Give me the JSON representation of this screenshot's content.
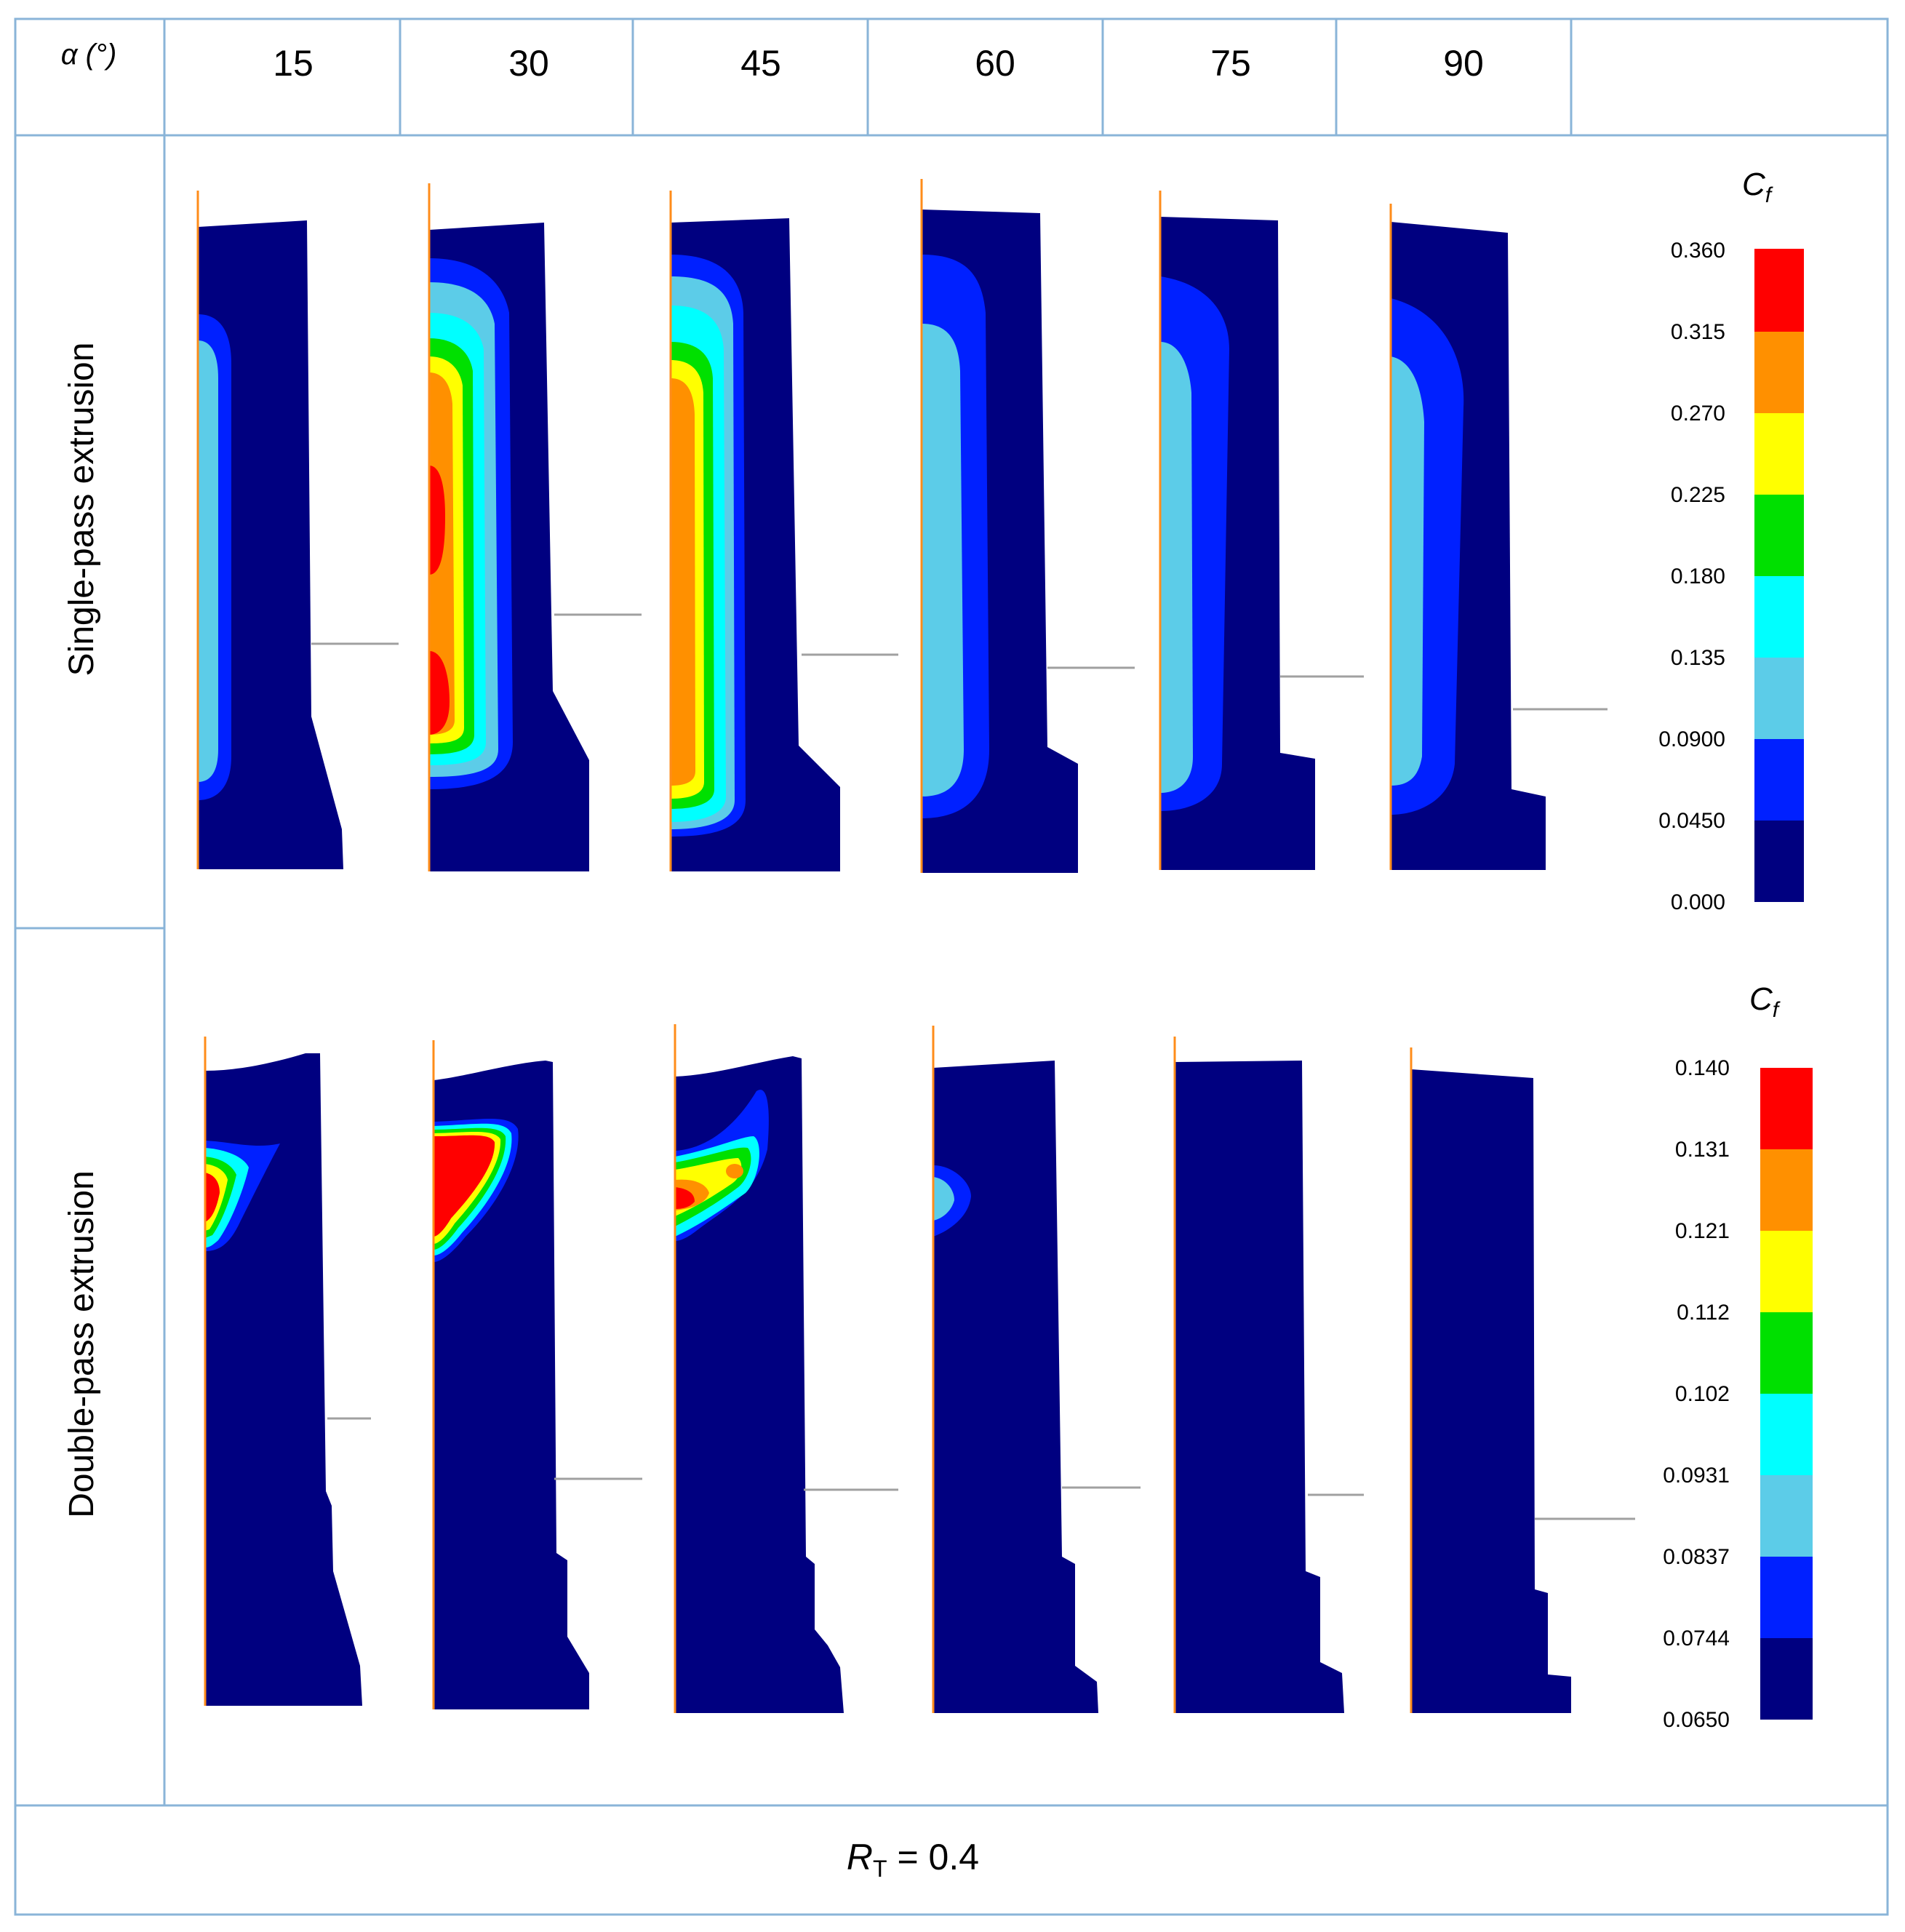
{
  "header": {
    "alpha_label": "α (°)",
    "angles": [
      "15",
      "30",
      "45",
      "60",
      "75",
      "90"
    ]
  },
  "rows": [
    {
      "label": "Single-pass extrusion"
    },
    {
      "label": "Double-pass extrusion"
    }
  ],
  "legends": [
    {
      "title_main": "C",
      "title_sub": "f",
      "ticks": [
        "0.360",
        "0.315",
        "0.270",
        "0.225",
        "0.180",
        "0.135",
        "0.0900",
        "0.0450",
        "0.000"
      ]
    },
    {
      "title_main": "C",
      "title_sub": "f",
      "ticks": [
        "0.140",
        "0.131",
        "0.121",
        "0.112",
        "0.102",
        "0.0931",
        "0.0837",
        "0.0744",
        "0.0650"
      ]
    }
  ],
  "contour_levels": [
    {
      "color": "#ff0000"
    },
    {
      "color": "#ff9000"
    },
    {
      "color": "#ffff00"
    },
    {
      "color": "#00e000"
    },
    {
      "color": "#00ffff"
    },
    {
      "color": "#5ccce8"
    },
    {
      "color": "#0020ff"
    },
    {
      "color": "#000080"
    }
  ],
  "colors": {
    "grid_border": "#8ab4d8",
    "centerline": "#ff8c1a",
    "die_line": "#a0a0a0",
    "billet_base": "#000080"
  },
  "footer": {
    "rt_main": "R",
    "rt_sub": "T",
    "rt_value": " = 0.4"
  }
}
